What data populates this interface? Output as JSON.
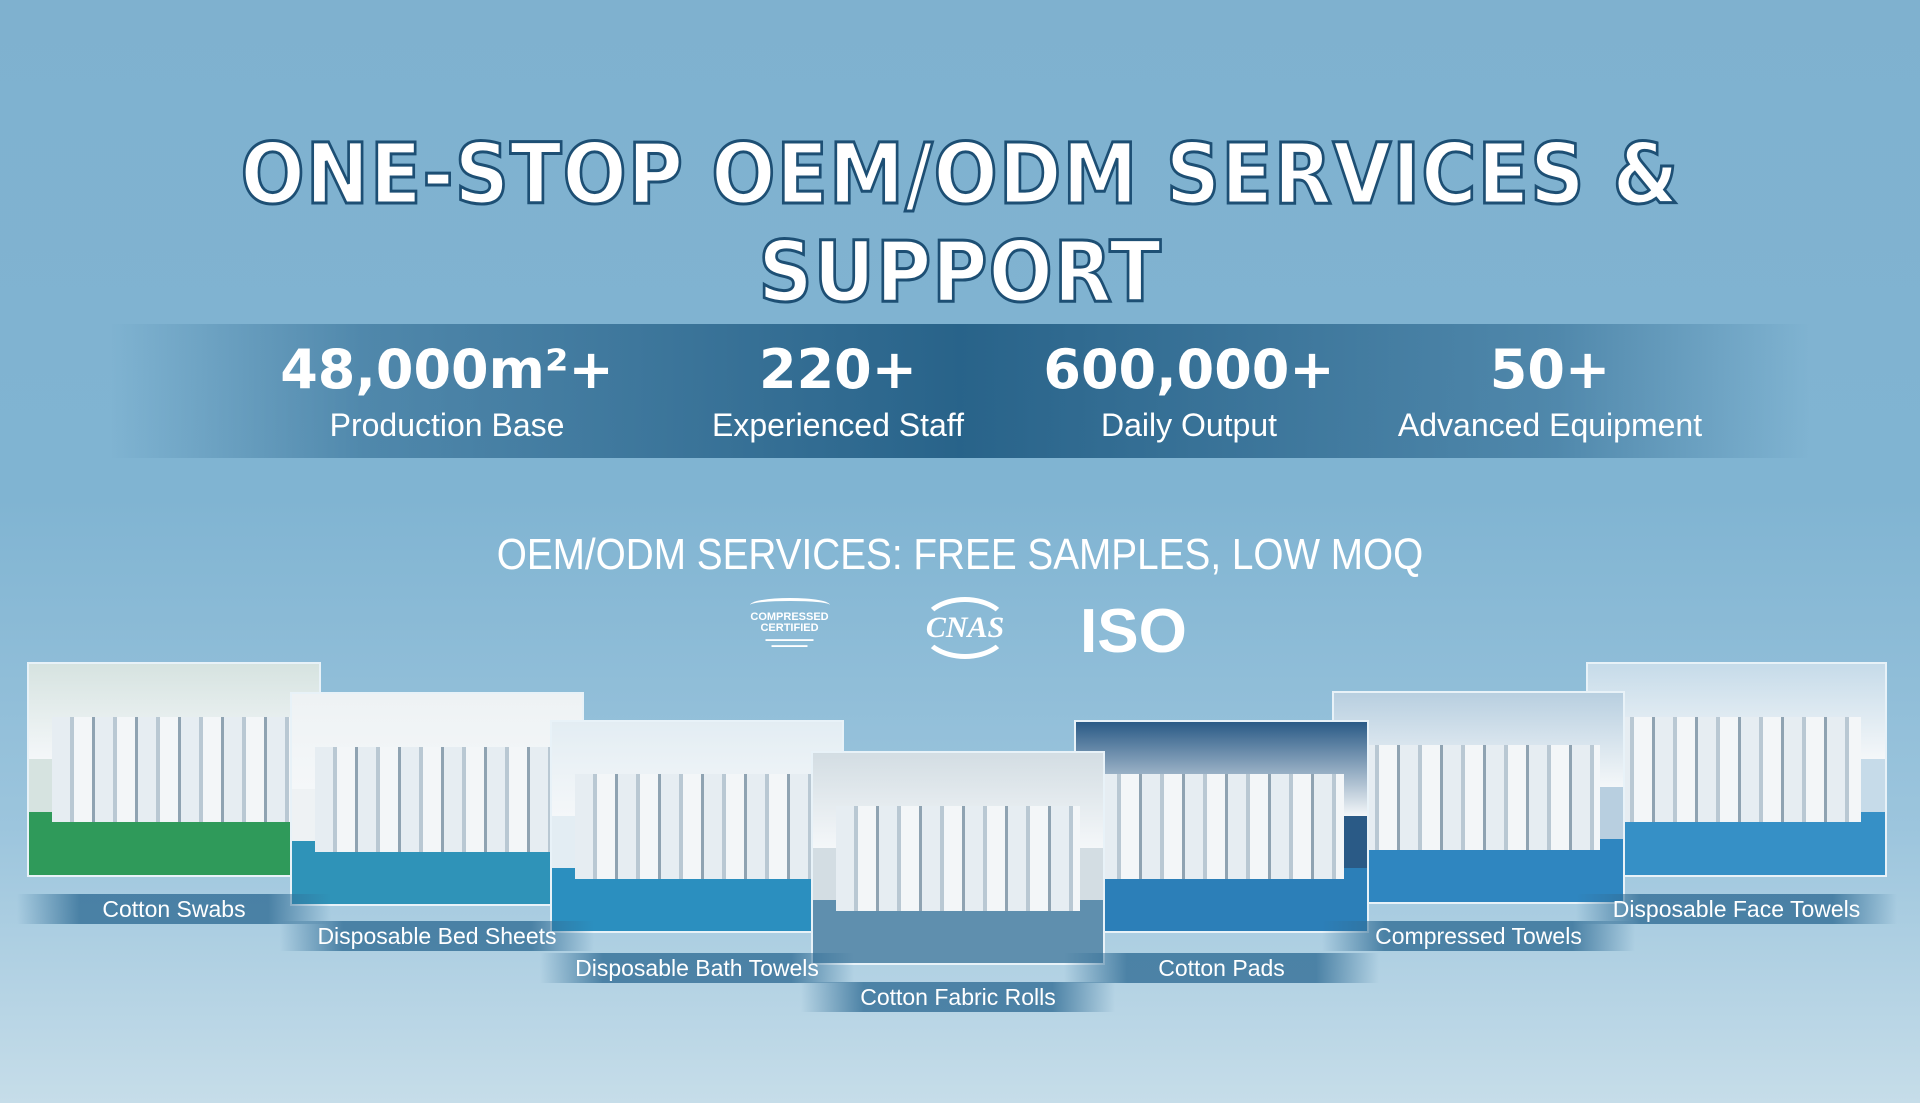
{
  "title": "ONE-STOP OEM/ODM SERVICES & SUPPORT",
  "stats": [
    {
      "value": "48,000m²+",
      "label": "Production Base"
    },
    {
      "value": "220+",
      "label": "Experienced Staff"
    },
    {
      "value": "600,000+",
      "label": "Daily Output"
    },
    {
      "value": "50+",
      "label": "Advanced Equipment"
    }
  ],
  "subtitle": "OEM/ODM SERVICES: FREE SAMPLES, LOW MOQ",
  "logos": {
    "compressed": "COMPRESSED CERTIFIED",
    "cnas": "CNAS",
    "iso": "ISO"
  },
  "products": [
    "Cotton Swabs",
    "Disposable Bed Sheets",
    "Disposable Bath Towels",
    "Cotton Fabric Rolls",
    "Cotton Pads",
    "Compressed Towels",
    "Disposable Face Towels"
  ],
  "colors": {
    "title_outline": "#1d4f74",
    "band": "#1f5a80",
    "background": "#80b4d2"
  }
}
